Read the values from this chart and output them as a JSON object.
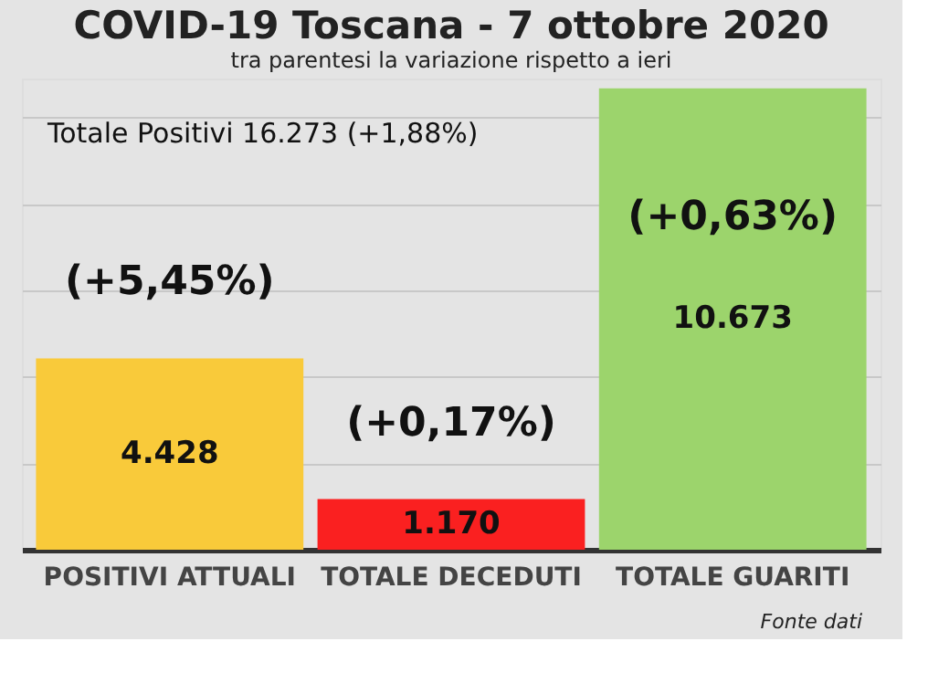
{
  "chart_data": {
    "type": "bar",
    "title": "COVID-19  Toscana - 7 ottobre 2020",
    "subtitle": "tra parentesi la variazione rispetto a ieri",
    "categories": [
      "POSITIVI ATTUALI",
      "TOTALE DECEDUTI",
      "TOTALE GUARITI"
    ],
    "values": [
      4428,
      1170,
      10673
    ],
    "colors": [
      "#f9ca3a",
      "#fa2020",
      "#9cd46c"
    ],
    "value_labels": [
      "4.428",
      "1.170",
      "10.673"
    ],
    "ylim": [
      0,
      10900
    ],
    "yticks": [
      {
        "value": 0,
        "label": null
      },
      {
        "value": 2000,
        "label": null
      },
      {
        "value": 4000,
        "label": null
      },
      {
        "value": 6000,
        "label": null
      },
      {
        "value": 8000,
        "label": null
      },
      {
        "value": 10000,
        "label": null
      }
    ],
    "tick_labels": "x",
    "grid": "y",
    "annotations": [
      "Totale Positivi     16.273 (+1,88%)",
      "(+5,45%)",
      "(+0,17%)",
      "(+0,63%)",
      "Fonte dati"
    ]
  }
}
